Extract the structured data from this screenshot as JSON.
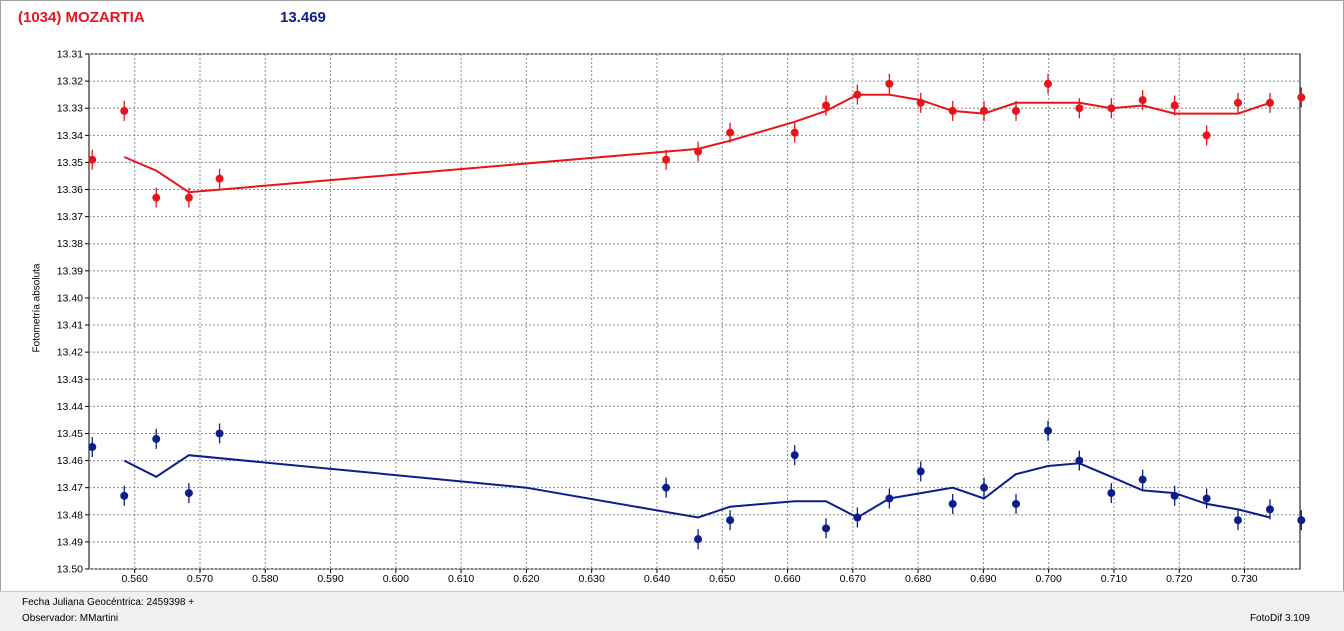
{
  "header": {
    "object_name": "(1034) MOZARTIA",
    "value": "13.469"
  },
  "footer": {
    "jd_label": "Fecha Juliana Geocéntrica: 2459398 +",
    "observer_label": "Observador: MMartini",
    "software": "FotoDif 3.109"
  },
  "colors": {
    "series_red": "#e8141b",
    "series_blue": "#0d1d8c",
    "grid": "#8c8c8c"
  },
  "chart_data": {
    "type": "scatter",
    "title": "",
    "xlabel": "",
    "ylabel": "Fotometría absoluta",
    "xlim": [
      0.553,
      0.7385
    ],
    "ylim": [
      13.31,
      13.5
    ],
    "y_inverted": true,
    "grid": true,
    "x_ticks": [
      "0.560",
      "0.570",
      "0.580",
      "0.590",
      "0.600",
      "0.610",
      "0.620",
      "0.630",
      "0.640",
      "0.650",
      "0.660",
      "0.670",
      "0.680",
      "0.690",
      "0.700",
      "0.710",
      "0.720",
      "0.730"
    ],
    "y_ticks": [
      "13.31",
      "13.32",
      "13.33",
      "13.34",
      "13.35",
      "13.36",
      "13.37",
      "13.38",
      "13.39",
      "13.40",
      "13.41",
      "13.42",
      "13.43",
      "13.44",
      "13.45",
      "13.46",
      "13.47",
      "13.48",
      "13.49",
      "13.50"
    ],
    "series": [
      {
        "color": "#e8141b",
        "points": [
          [
            0.5535,
            13.349
          ],
          [
            0.5584,
            13.331
          ],
          [
            0.5633,
            13.363
          ],
          [
            0.5683,
            13.363
          ],
          [
            0.573,
            13.356
          ],
          [
            0.6414,
            13.349
          ],
          [
            0.6463,
            13.346
          ],
          [
            0.6512,
            13.339
          ],
          [
            0.6611,
            13.339
          ],
          [
            0.6659,
            13.329
          ],
          [
            0.6707,
            13.325
          ],
          [
            0.6756,
            13.321
          ],
          [
            0.6804,
            13.328
          ],
          [
            0.6853,
            13.331
          ],
          [
            0.6901,
            13.331
          ],
          [
            0.695,
            13.331
          ],
          [
            0.6999,
            13.321
          ],
          [
            0.7047,
            13.33
          ],
          [
            0.7096,
            13.33
          ],
          [
            0.7144,
            13.327
          ],
          [
            0.7193,
            13.329
          ],
          [
            0.7242,
            13.34
          ],
          [
            0.729,
            13.328
          ],
          [
            0.7339,
            13.328
          ],
          [
            0.7387,
            13.326
          ]
        ],
        "fit": [
          [
            0.5584,
            13.348
          ],
          [
            0.5633,
            13.353
          ],
          [
            0.5683,
            13.361
          ],
          [
            0.6463,
            13.345
          ],
          [
            0.6512,
            13.342
          ],
          [
            0.6611,
            13.335
          ],
          [
            0.6659,
            13.331
          ],
          [
            0.6707,
            13.325
          ],
          [
            0.6756,
            13.325
          ],
          [
            0.6804,
            13.327
          ],
          [
            0.6853,
            13.331
          ],
          [
            0.6901,
            13.332
          ],
          [
            0.695,
            13.328
          ],
          [
            0.7047,
            13.328
          ],
          [
            0.7096,
            13.33
          ],
          [
            0.7144,
            13.329
          ],
          [
            0.7193,
            13.332
          ],
          [
            0.729,
            13.332
          ],
          [
            0.7339,
            13.328
          ]
        ]
      },
      {
        "color": "#0d1d8c",
        "points": [
          [
            0.5535,
            13.455
          ],
          [
            0.5584,
            13.473
          ],
          [
            0.5633,
            13.452
          ],
          [
            0.5683,
            13.472
          ],
          [
            0.573,
            13.45
          ],
          [
            0.6414,
            13.47
          ],
          [
            0.6463,
            13.489
          ],
          [
            0.6512,
            13.482
          ],
          [
            0.6611,
            13.458
          ],
          [
            0.6659,
            13.485
          ],
          [
            0.6707,
            13.481
          ],
          [
            0.6756,
            13.474
          ],
          [
            0.6804,
            13.464
          ],
          [
            0.6853,
            13.476
          ],
          [
            0.6901,
            13.47
          ],
          [
            0.695,
            13.476
          ],
          [
            0.6999,
            13.449
          ],
          [
            0.7047,
            13.46
          ],
          [
            0.7096,
            13.472
          ],
          [
            0.7144,
            13.467
          ],
          [
            0.7193,
            13.473
          ],
          [
            0.7242,
            13.474
          ],
          [
            0.729,
            13.482
          ],
          [
            0.7339,
            13.478
          ],
          [
            0.7387,
            13.482
          ]
        ],
        "fit": [
          [
            0.5584,
            13.46
          ],
          [
            0.5633,
            13.466
          ],
          [
            0.5683,
            13.458
          ],
          [
            0.62,
            13.47
          ],
          [
            0.6463,
            13.481
          ],
          [
            0.6512,
            13.477
          ],
          [
            0.6611,
            13.475
          ],
          [
            0.6659,
            13.475
          ],
          [
            0.6707,
            13.481
          ],
          [
            0.6756,
            13.474
          ],
          [
            0.6804,
            13.472
          ],
          [
            0.6853,
            13.47
          ],
          [
            0.6901,
            13.474
          ],
          [
            0.695,
            13.465
          ],
          [
            0.6999,
            13.462
          ],
          [
            0.7047,
            13.461
          ],
          [
            0.7096,
            13.466
          ],
          [
            0.7144,
            13.471
          ],
          [
            0.7193,
            13.472
          ],
          [
            0.7242,
            13.476
          ],
          [
            0.729,
            13.478
          ],
          [
            0.7339,
            13.481
          ]
        ]
      }
    ]
  }
}
